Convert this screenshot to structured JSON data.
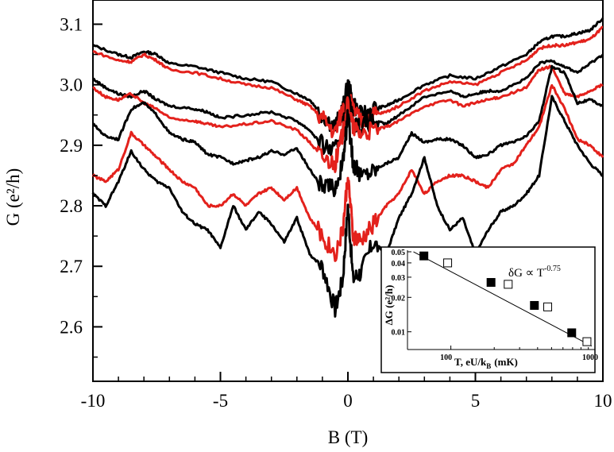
{
  "chart_data": [
    {
      "type": "line",
      "xlabel": "B (T)",
      "ylabel": "G (e²/h)",
      "xlim": [
        -10,
        10
      ],
      "ylim": [
        2.51,
        3.14
      ],
      "xticks": [
        -10,
        -5,
        0,
        5,
        10
      ],
      "xtick_labels": [
        "-10",
        "-5",
        "0",
        "5",
        "10"
      ],
      "yticks": [
        2.6,
        2.7,
        2.8,
        2.9,
        3.0,
        3.1
      ],
      "ytick_labels": [
        "2.6",
        "2.7",
        "2.8",
        "2.9",
        "3.0",
        "3.1"
      ],
      "grid": false,
      "series": [
        {
          "color": "#000000",
          "x": [
            -10,
            -9,
            -8.5,
            -8,
            -7.5,
            -7,
            -6,
            -5,
            -4,
            -3,
            -2,
            -1.5,
            -1,
            -0.5,
            -0.2,
            0,
            0.2,
            0.5,
            1,
            1.5,
            2,
            3,
            4,
            5,
            6,
            7,
            7.5,
            8,
            8.5,
            9,
            9.5,
            10
          ],
          "y": [
            3.065,
            3.05,
            3.045,
            3.055,
            3.05,
            3.035,
            3.03,
            3.02,
            3.01,
            3.005,
            2.985,
            2.975,
            2.95,
            2.93,
            2.96,
            3.0,
            2.97,
            2.95,
            2.96,
            2.965,
            2.975,
            3.0,
            3.015,
            3.01,
            3.03,
            3.05,
            3.07,
            3.08,
            3.08,
            3.085,
            3.09,
            3.11
          ]
        },
        {
          "color": "#e3211c",
          "x": [
            -10,
            -9,
            -8.5,
            -8,
            -7.5,
            -7,
            -6,
            -5,
            -4,
            -3,
            -2,
            -1.5,
            -1,
            -0.5,
            -0.2,
            0,
            0.2,
            0.5,
            1,
            1.5,
            2,
            3,
            4,
            5,
            6,
            7,
            7.5,
            8,
            8.5,
            9,
            9.5,
            10
          ],
          "y": [
            3.055,
            3.04,
            3.038,
            3.05,
            3.04,
            3.025,
            3.02,
            3.01,
            3.0,
            2.995,
            2.975,
            2.965,
            2.945,
            2.92,
            2.96,
            2.98,
            2.96,
            2.94,
            2.95,
            2.955,
            2.965,
            2.99,
            3.005,
            3.0,
            3.02,
            3.04,
            3.06,
            3.065,
            3.065,
            3.07,
            3.075,
            3.095
          ]
        },
        {
          "color": "#000000",
          "x": [
            -10,
            -9.5,
            -9,
            -8.5,
            -8,
            -7.5,
            -7,
            -6,
            -5.5,
            -5,
            -4,
            -3,
            -2,
            -1.5,
            -1,
            -0.5,
            -0.2,
            0,
            0.2,
            0.5,
            1,
            1.5,
            2,
            3,
            4,
            4.5,
            5,
            5.5,
            6,
            7,
            7.5,
            8,
            8.5,
            9,
            9.5,
            10
          ],
          "y": [
            3.01,
            2.995,
            2.985,
            2.98,
            2.99,
            2.975,
            2.965,
            2.96,
            2.955,
            2.945,
            2.95,
            2.955,
            2.94,
            2.925,
            2.9,
            2.89,
            2.93,
            2.99,
            2.94,
            2.93,
            2.94,
            2.935,
            2.95,
            2.98,
            2.99,
            2.98,
            2.985,
            2.99,
            2.99,
            3.01,
            3.035,
            3.04,
            3.03,
            3.02,
            3.035,
            3.05
          ]
        },
        {
          "color": "#e3211c",
          "x": [
            -10,
            -9.5,
            -9,
            -8.5,
            -8,
            -7.5,
            -7,
            -6,
            -5.5,
            -5,
            -4,
            -3,
            -2,
            -1.5,
            -1,
            -0.5,
            -0.2,
            0,
            0.2,
            0.5,
            1,
            1.5,
            2,
            3,
            4,
            4.5,
            5,
            5.5,
            6,
            7,
            7.5,
            8,
            8.5,
            9,
            9.5,
            10
          ],
          "y": [
            2.995,
            2.98,
            2.975,
            2.985,
            2.97,
            2.96,
            2.945,
            2.94,
            2.935,
            2.93,
            2.935,
            2.94,
            2.925,
            2.905,
            2.88,
            2.87,
            2.92,
            2.97,
            2.93,
            2.92,
            2.925,
            2.93,
            2.94,
            2.965,
            2.975,
            2.965,
            2.97,
            2.975,
            2.98,
            2.995,
            3.025,
            3.03,
            2.985,
            2.98,
            2.99,
            3.0
          ]
        },
        {
          "color": "#000000",
          "x": [
            -10,
            -9.5,
            -9,
            -8.5,
            -8,
            -7.5,
            -7,
            -6.5,
            -6,
            -5.5,
            -5,
            -4.5,
            -4,
            -3.5,
            -3,
            -2.5,
            -2,
            -1.5,
            -1,
            -0.5,
            -0.2,
            0,
            0.2,
            0.5,
            1,
            1.5,
            2,
            2.5,
            3,
            3.5,
            4,
            4.5,
            5,
            5.5,
            6,
            6.5,
            7,
            7.5,
            8,
            8.5,
            9,
            9.5,
            10
          ],
          "y": [
            2.935,
            2.915,
            2.91,
            2.96,
            2.97,
            2.95,
            2.92,
            2.91,
            2.905,
            2.885,
            2.88,
            2.87,
            2.875,
            2.88,
            2.89,
            2.885,
            2.895,
            2.86,
            2.83,
            2.83,
            2.87,
            2.95,
            2.87,
            2.85,
            2.86,
            2.87,
            2.88,
            2.92,
            2.905,
            2.91,
            2.91,
            2.9,
            2.88,
            2.885,
            2.9,
            2.905,
            2.915,
            2.94,
            3.03,
            3.02,
            2.97,
            2.975,
            2.965
          ]
        },
        {
          "color": "#e3211c",
          "x": [
            -10,
            -9.5,
            -9,
            -8.5,
            -8,
            -7.5,
            -7,
            -6.5,
            -6,
            -5.5,
            -5,
            -4.5,
            -4,
            -3.5,
            -3,
            -2.5,
            -2,
            -1.5,
            -1,
            -0.5,
            -0.2,
            0,
            0.2,
            0.5,
            1,
            1.5,
            2,
            2.5,
            3,
            3.5,
            4,
            4.5,
            5,
            5.5,
            6,
            6.5,
            7,
            7.5,
            8,
            8.5,
            9,
            9.5,
            10
          ],
          "y": [
            2.85,
            2.84,
            2.86,
            2.92,
            2.9,
            2.88,
            2.86,
            2.84,
            2.83,
            2.8,
            2.8,
            2.82,
            2.8,
            2.82,
            2.83,
            2.81,
            2.83,
            2.78,
            2.75,
            2.72,
            2.76,
            2.85,
            2.75,
            2.74,
            2.77,
            2.8,
            2.82,
            2.86,
            2.82,
            2.84,
            2.85,
            2.85,
            2.84,
            2.83,
            2.86,
            2.87,
            2.9,
            2.93,
            3.0,
            2.96,
            2.91,
            2.9,
            2.88
          ]
        },
        {
          "color": "#000000",
          "x": [
            -10,
            -9.5,
            -9,
            -8.5,
            -8,
            -7.5,
            -7,
            -6.5,
            -6,
            -5.5,
            -5,
            -4.5,
            -4,
            -3.5,
            -3,
            -2.5,
            -2,
            -1.5,
            -1,
            -0.5,
            -0.2,
            0,
            0.2,
            0.5,
            1,
            1.5,
            2,
            2.5,
            3,
            3.5,
            4,
            4.5,
            5,
            5.5,
            6,
            6.5,
            7,
            7.5,
            8,
            8.5,
            9,
            9.5,
            10
          ],
          "y": [
            2.82,
            2.8,
            2.84,
            2.89,
            2.86,
            2.84,
            2.83,
            2.79,
            2.77,
            2.76,
            2.73,
            2.8,
            2.76,
            2.79,
            2.77,
            2.74,
            2.78,
            2.72,
            2.7,
            2.63,
            2.68,
            2.8,
            2.68,
            2.69,
            2.74,
            2.72,
            2.78,
            2.82,
            2.88,
            2.8,
            2.76,
            2.78,
            2.72,
            2.76,
            2.79,
            2.8,
            2.82,
            2.85,
            2.98,
            2.94,
            2.9,
            2.87,
            2.85
          ]
        }
      ]
    },
    {
      "type": "scatter",
      "xlabel": "T, eU/k",
      "xlabel_subscript": "B",
      "xlabel_unit": "(mK)",
      "ylabel": "ΔG (e²/h)",
      "xscale": "log",
      "yscale": "log",
      "xlim": [
        50,
        1000
      ],
      "ylim": [
        0.007,
        0.055
      ],
      "xtick_labels": [
        "100",
        "1000"
      ],
      "ytick_labels": [
        "0.05",
        "0.04",
        "0.03",
        "0.02",
        "0.01"
      ],
      "annotation": "δG ∝ T",
      "annotation_exponent": "-0.75",
      "series": [
        {
          "marker": "filled-square",
          "x": [
            65,
            190,
            380,
            690
          ],
          "y": [
            0.046,
            0.027,
            0.017,
            0.0098
          ]
        },
        {
          "marker": "open-square",
          "x": [
            95,
            250,
            470,
            880
          ],
          "y": [
            0.04,
            0.026,
            0.0165,
            0.0082
          ]
        }
      ],
      "fit": {
        "x": [
          55,
          950
        ],
        "y": [
          0.05,
          0.0075
        ]
      }
    }
  ]
}
